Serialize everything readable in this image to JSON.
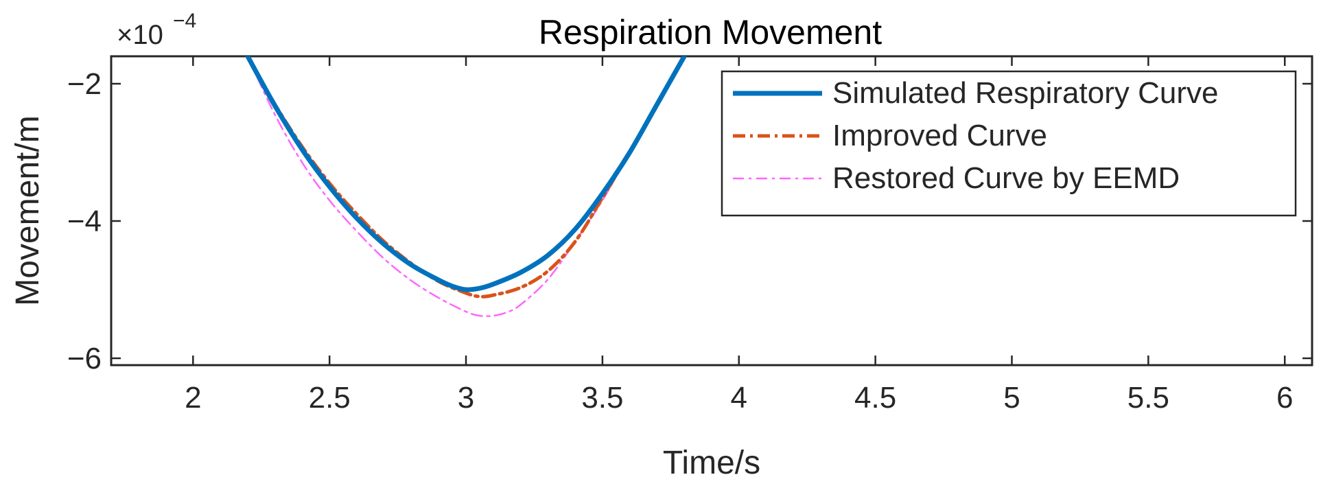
{
  "chart_data": {
    "type": "line",
    "title": "Respiration Movement",
    "xlabel": "Time/s",
    "ylabel": "Movement/m",
    "y_exponent_label": "×10",
    "y_exponent_power": "−4",
    "xlim": [
      1.7,
      6.1
    ],
    "ylim": [
      -6.1,
      -1.6
    ],
    "xticks": [
      2,
      2.5,
      3,
      3.5,
      4,
      4.5,
      5,
      5.5,
      6
    ],
    "xtick_labels": [
      "2",
      "2.5",
      "3",
      "3.5",
      "4",
      "4.5",
      "5",
      "5.5",
      "6"
    ],
    "yticks": [
      -2,
      -4,
      -6
    ],
    "ytick_labels": [
      "−2",
      "−4",
      "−6"
    ],
    "grid": false,
    "legend_position": "top-right",
    "series": [
      {
        "name": "Simulated Respiratory Curve",
        "color": "#0072BD",
        "style": "solid",
        "x": [
          2.2,
          2.3,
          2.4,
          2.5,
          2.6,
          2.7,
          2.8,
          2.9,
          2.95,
          3.0,
          3.05,
          3.1,
          3.2,
          3.3,
          3.4,
          3.5,
          3.6,
          3.7,
          3.8
        ],
        "y": [
          -1.6,
          -2.32,
          -2.96,
          -3.5,
          -3.96,
          -4.34,
          -4.64,
          -4.86,
          -4.95,
          -5.0,
          -4.98,
          -4.92,
          -4.75,
          -4.5,
          -4.12,
          -3.6,
          -3.0,
          -2.3,
          -1.6
        ]
      },
      {
        "name": "Improved Curve",
        "color": "#D95319",
        "style": "dashdot",
        "x": [
          2.2,
          2.3,
          2.4,
          2.5,
          2.6,
          2.7,
          2.8,
          2.9,
          3.0,
          3.05,
          3.1,
          3.2,
          3.3,
          3.4,
          3.5,
          3.6,
          3.7,
          3.8
        ],
        "y": [
          -1.6,
          -2.3,
          -2.92,
          -3.45,
          -3.9,
          -4.3,
          -4.62,
          -4.88,
          -5.05,
          -5.1,
          -5.08,
          -4.97,
          -4.73,
          -4.3,
          -3.66,
          -3.0,
          -2.32,
          -1.6
        ]
      },
      {
        "name": "Restored Curve by EEMD",
        "color": "#FF66FF",
        "style": "dashdot",
        "x": [
          2.2,
          2.3,
          2.4,
          2.5,
          2.6,
          2.7,
          2.8,
          2.9,
          3.0,
          3.05,
          3.1,
          3.15,
          3.2,
          3.3,
          3.4,
          3.5,
          3.6,
          3.7,
          3.8
        ],
        "y": [
          -1.6,
          -2.45,
          -3.15,
          -3.7,
          -4.15,
          -4.55,
          -4.87,
          -5.12,
          -5.32,
          -5.38,
          -5.38,
          -5.33,
          -5.22,
          -4.85,
          -4.3,
          -3.7,
          -3.0,
          -2.32,
          -1.6
        ]
      }
    ]
  }
}
